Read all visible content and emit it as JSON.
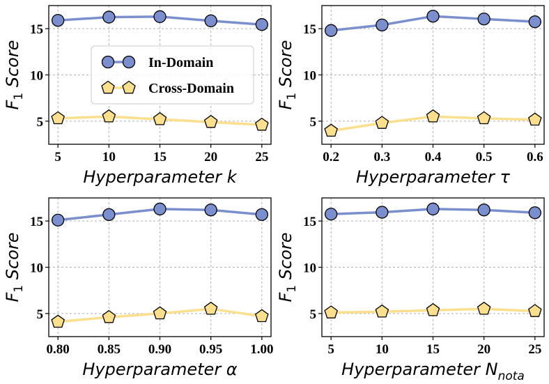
{
  "colors": {
    "in_domain": "#7b8fcf",
    "cross_domain": "#f9df8e"
  },
  "legend": {
    "entries": [
      "In-Domain",
      "Cross-Domain"
    ],
    "placement": "center-left of first panel"
  },
  "chart_data": [
    {
      "type": "line",
      "ylabel_prefix": "F",
      "ylabel_sub": "1",
      "ylabel_suffix": " Score",
      "xlabel_main": "Hyperparameter k",
      "xlabel_sub": "",
      "x": [
        5,
        10,
        15,
        20,
        25
      ],
      "xtick_labels": [
        "5",
        "10",
        "15",
        "20",
        "25"
      ],
      "yticks": [
        5,
        10,
        15
      ],
      "ytick_labels": [
        "5",
        "10",
        "15"
      ],
      "ylim": [
        2.5,
        17.5
      ],
      "grid": true,
      "series": [
        {
          "name": "In-Domain",
          "values": [
            15.9,
            16.25,
            16.3,
            15.85,
            15.45
          ]
        },
        {
          "name": "Cross-Domain",
          "values": [
            5.3,
            5.5,
            5.2,
            4.9,
            4.6
          ]
        }
      ]
    },
    {
      "type": "line",
      "ylabel_prefix": "F",
      "ylabel_sub": "1",
      "ylabel_suffix": " Score",
      "xlabel_main": "Hyperparameter τ",
      "xlabel_sub": "",
      "x": [
        0.2,
        0.3,
        0.4,
        0.5,
        0.6
      ],
      "xtick_labels": [
        "0.2",
        "0.3",
        "0.4",
        "0.5",
        "0.6"
      ],
      "yticks": [
        5,
        10,
        15
      ],
      "ytick_labels": [
        "5",
        "10",
        "15"
      ],
      "ylim": [
        2.5,
        17.5
      ],
      "grid": true,
      "series": [
        {
          "name": "In-Domain",
          "values": [
            14.8,
            15.4,
            16.35,
            16.05,
            15.75
          ]
        },
        {
          "name": "Cross-Domain",
          "values": [
            3.95,
            4.8,
            5.5,
            5.3,
            5.15
          ]
        }
      ]
    },
    {
      "type": "line",
      "ylabel_prefix": "F",
      "ylabel_sub": "1",
      "ylabel_suffix": " Score",
      "xlabel_main": "Hyperparameter α",
      "xlabel_sub": "",
      "x": [
        0.8,
        0.85,
        0.9,
        0.95,
        1.0
      ],
      "xtick_labels": [
        "0.80",
        "0.85",
        "0.90",
        "0.95",
        "1.00"
      ],
      "yticks": [
        5,
        10,
        15
      ],
      "ytick_labels": [
        "5",
        "10",
        "15"
      ],
      "ylim": [
        2.5,
        17.5
      ],
      "grid": true,
      "series": [
        {
          "name": "In-Domain",
          "values": [
            15.1,
            15.7,
            16.3,
            16.2,
            15.7
          ]
        },
        {
          "name": "Cross-Domain",
          "values": [
            4.1,
            4.6,
            5.0,
            5.5,
            4.7
          ]
        }
      ]
    },
    {
      "type": "line",
      "ylabel_prefix": "F",
      "ylabel_sub": "1",
      "ylabel_suffix": " Score",
      "xlabel_main": "Hyperparameter N",
      "xlabel_sub": "nota",
      "x": [
        5,
        10,
        15,
        20,
        25
      ],
      "xtick_labels": [
        "5",
        "10",
        "15",
        "20",
        "25"
      ],
      "yticks": [
        5,
        10,
        15
      ],
      "ytick_labels": [
        "5",
        "10",
        "15"
      ],
      "ylim": [
        2.5,
        17.5
      ],
      "grid": true,
      "series": [
        {
          "name": "In-Domain",
          "values": [
            15.75,
            15.95,
            16.3,
            16.2,
            15.9
          ]
        },
        {
          "name": "Cross-Domain",
          "values": [
            5.1,
            5.2,
            5.35,
            5.5,
            5.25
          ]
        }
      ]
    }
  ]
}
